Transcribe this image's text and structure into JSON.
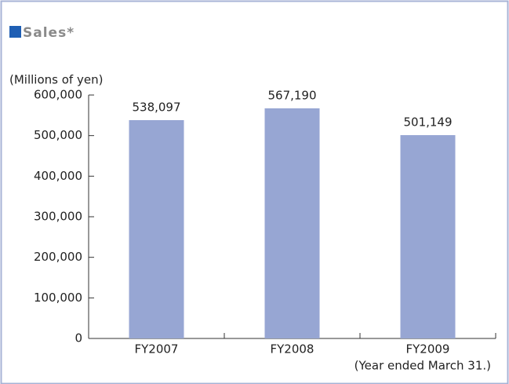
{
  "chart_data": {
    "type": "bar",
    "title": "Sales*",
    "ylabel": "(Millions of yen)",
    "note": "(Year ended March 31.)",
    "categories": [
      "FY2007",
      "FY2008",
      "FY2009"
    ],
    "values": [
      538097,
      567190,
      501149
    ],
    "value_labels": [
      "538,097",
      "567,190",
      "501,149"
    ],
    "color": "#97a6d3",
    "ylim": [
      0,
      600000
    ],
    "yticks": [
      0,
      {
        "value": 100000,
        "label": "100,000"
      },
      {
        "value": 200000,
        "label": "200,000"
      },
      {
        "value": 300000,
        "label": "300,000"
      },
      {
        "value": 400000,
        "label": "400,000"
      },
      {
        "value": 500000,
        "label": "500,000"
      },
      {
        "value": 600000,
        "label": "600,000"
      }
    ],
    "grid": false
  }
}
